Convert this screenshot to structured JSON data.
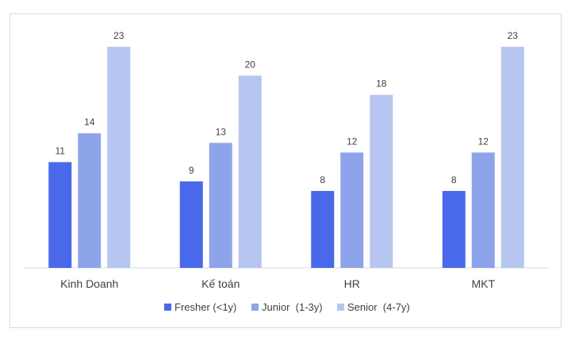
{
  "chart_data": {
    "type": "bar",
    "categories": [
      "Kinh Doanh",
      "Kế toán",
      "HR",
      "MKT"
    ],
    "series": [
      {
        "name": "Fresher (<1y)",
        "values": [
          11,
          9,
          8,
          8
        ],
        "color": "#4a69ea"
      },
      {
        "name": "Junior  (1-3y)",
        "values": [
          14,
          13,
          12,
          12
        ],
        "color": "#8ea4ea"
      },
      {
        "name": "Senior  (4-7y)",
        "values": [
          23,
          20,
          18,
          23
        ],
        "color": "#b6c6f0"
      }
    ],
    "title": "",
    "xlabel": "",
    "ylabel": "",
    "ylim": [
      0,
      25
    ],
    "grid": false,
    "data_labels": true,
    "legend_position": "bottom",
    "axis_color": "#d9d9d9",
    "text_color": "#404040"
  }
}
